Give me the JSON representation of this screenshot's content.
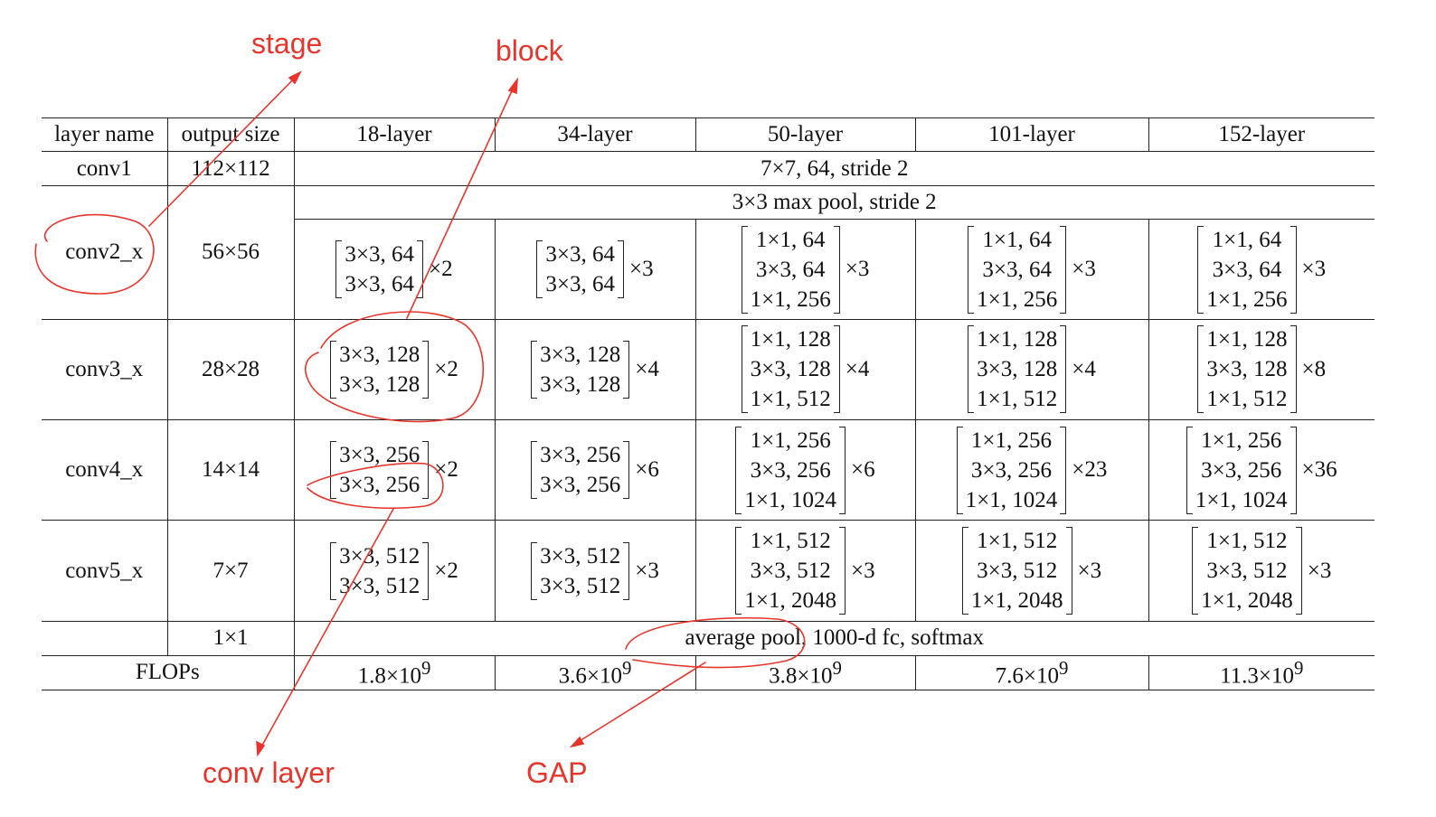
{
  "annotations": {
    "stage": "stage",
    "block": "block",
    "conv_layer": "conv layer",
    "gap": "GAP",
    "color": "#e8352c"
  },
  "table": {
    "headers": [
      "layer name",
      "output size",
      "18-layer",
      "34-layer",
      "50-layer",
      "101-layer",
      "152-layer"
    ],
    "conv1": {
      "name": "conv1",
      "size": "112×112",
      "spec": "7×7, 64, stride 2"
    },
    "maxpool": "3×3 max pool, stride 2",
    "stages": [
      {
        "name": "conv2_x",
        "size": "56×56",
        "blocks": [
          {
            "lines": [
              "3×3, 64",
              "3×3, 64"
            ],
            "rep": "×2"
          },
          {
            "lines": [
              "3×3, 64",
              "3×3, 64"
            ],
            "rep": "×3"
          },
          {
            "lines": [
              "1×1, 64",
              "3×3, 64",
              "1×1, 256"
            ],
            "rep": "×3"
          },
          {
            "lines": [
              "1×1, 64",
              "3×3, 64",
              "1×1, 256"
            ],
            "rep": "×3"
          },
          {
            "lines": [
              "1×1, 64",
              "3×3, 64",
              "1×1, 256"
            ],
            "rep": "×3"
          }
        ]
      },
      {
        "name": "conv3_x",
        "size": "28×28",
        "blocks": [
          {
            "lines": [
              "3×3, 128",
              "3×3, 128"
            ],
            "rep": "×2"
          },
          {
            "lines": [
              "3×3, 128",
              "3×3, 128"
            ],
            "rep": "×4"
          },
          {
            "lines": [
              "1×1, 128",
              "3×3, 128",
              "1×1, 512"
            ],
            "rep": "×4"
          },
          {
            "lines": [
              "1×1, 128",
              "3×3, 128",
              "1×1, 512"
            ],
            "rep": "×4"
          },
          {
            "lines": [
              "1×1, 128",
              "3×3, 128",
              "1×1, 512"
            ],
            "rep": "×8"
          }
        ]
      },
      {
        "name": "conv4_x",
        "size": "14×14",
        "blocks": [
          {
            "lines": [
              "3×3, 256",
              "3×3, 256"
            ],
            "rep": "×2"
          },
          {
            "lines": [
              "3×3, 256",
              "3×3, 256"
            ],
            "rep": "×6"
          },
          {
            "lines": [
              "1×1, 256",
              "3×3, 256",
              "1×1, 1024"
            ],
            "rep": "×6"
          },
          {
            "lines": [
              "1×1, 256",
              "3×3, 256",
              "1×1, 1024"
            ],
            "rep": "×23"
          },
          {
            "lines": [
              "1×1, 256",
              "3×3, 256",
              "1×1, 1024"
            ],
            "rep": "×36"
          }
        ]
      },
      {
        "name": "conv5_x",
        "size": "7×7",
        "blocks": [
          {
            "lines": [
              "3×3, 512",
              "3×3, 512"
            ],
            "rep": "×2"
          },
          {
            "lines": [
              "3×3, 512",
              "3×3, 512"
            ],
            "rep": "×3"
          },
          {
            "lines": [
              "1×1, 512",
              "3×3, 512",
              "1×1, 2048"
            ],
            "rep": "×3"
          },
          {
            "lines": [
              "1×1, 512",
              "3×3, 512",
              "1×1, 2048"
            ],
            "rep": "×3"
          },
          {
            "lines": [
              "1×1, 512",
              "3×3, 512",
              "1×1, 2048"
            ],
            "rep": "×3"
          }
        ]
      }
    ],
    "final": {
      "size": "1×1",
      "spec": "average pool, 1000-d fc, softmax"
    },
    "flops": {
      "label": "FLOPs",
      "values": [
        "1.8×10",
        "3.6×10",
        "3.8×10",
        "7.6×10",
        "11.3×10"
      ],
      "exponent": "9"
    }
  }
}
